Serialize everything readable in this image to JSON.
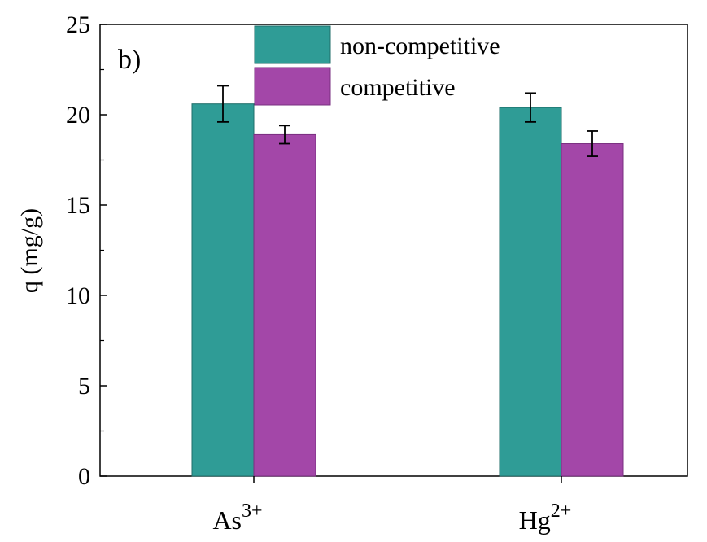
{
  "chart_data": {
    "type": "bar",
    "panel_label": "b)",
    "ylabel": "q (mg/g)",
    "xlabel": "",
    "ylim": [
      0,
      25
    ],
    "yticks": [
      0,
      5,
      10,
      15,
      20,
      25
    ],
    "grid": false,
    "legend_position": "top-center",
    "categories": [
      {
        "base": "As",
        "sup": "3+"
      },
      {
        "base": "Hg",
        "sup": "2+"
      }
    ],
    "series": [
      {
        "name": "non-competitive",
        "color": "#2f9c96",
        "edge": "#1f6e6a",
        "values": [
          20.6,
          20.4
        ],
        "errors": [
          1.0,
          0.8
        ]
      },
      {
        "name": "competitive",
        "color": "#a347a8",
        "edge": "#7a2f80",
        "values": [
          18.9,
          18.4
        ],
        "errors": [
          0.5,
          0.7
        ]
      }
    ]
  }
}
